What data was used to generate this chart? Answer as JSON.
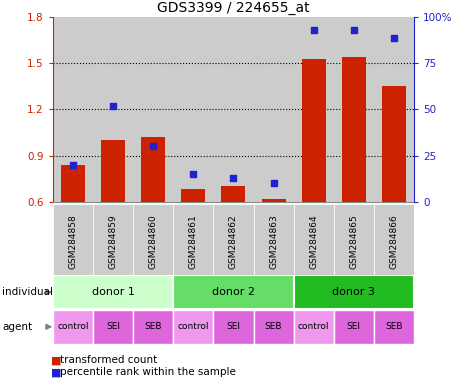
{
  "title": "GDS3399 / 224655_at",
  "samples": [
    "GSM284858",
    "GSM284859",
    "GSM284860",
    "GSM284861",
    "GSM284862",
    "GSM284863",
    "GSM284864",
    "GSM284865",
    "GSM284866"
  ],
  "transformed_count": [
    0.84,
    1.0,
    1.02,
    0.68,
    0.7,
    0.615,
    1.53,
    1.54,
    1.35
  ],
  "percentile_rank": [
    20,
    52,
    30,
    15,
    13,
    10,
    93,
    93,
    89
  ],
  "ylim_left": [
    0.6,
    1.8
  ],
  "ylim_right": [
    0,
    100
  ],
  "yticks_left": [
    0.6,
    0.9,
    1.2,
    1.5,
    1.8
  ],
  "yticks_right": [
    0,
    25,
    50,
    75,
    100
  ],
  "ytick_labels_right": [
    "0",
    "25",
    "50",
    "75",
    "100%"
  ],
  "bar_color": "#cc2200",
  "dot_color": "#2222cc",
  "bg_color": "#ffffff",
  "sample_bg": "#cccccc",
  "individual_colors": [
    "#ccffcc",
    "#66dd66",
    "#22bb22"
  ],
  "individual_labels": [
    "donor 1",
    "donor 2",
    "donor 3"
  ],
  "agent_labels": [
    "control",
    "SEI",
    "SEB",
    "control",
    "SEI",
    "SEB",
    "control",
    "SEI",
    "SEB"
  ],
  "agent_bg_odd": "#dd77dd",
  "agent_bg_even": "#ee99ee",
  "legend_items": [
    "transformed count",
    "percentile rank within the sample"
  ],
  "legend_colors": [
    "#cc2200",
    "#2222cc"
  ],
  "grid_yticks": [
    0.9,
    1.2,
    1.5
  ],
  "title_fontsize": 10
}
